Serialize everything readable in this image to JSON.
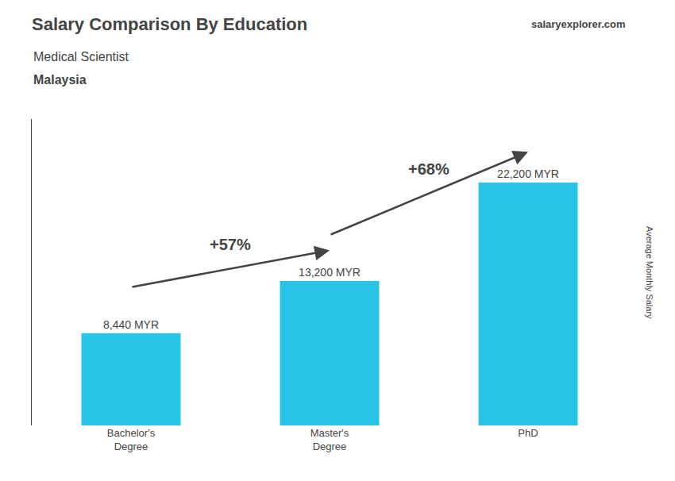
{
  "chart_data": {
    "type": "bar",
    "title": "Salary Comparison By Education",
    "subtitle": "Medical Scientist",
    "annotations": [
      "Malaysia",
      "salaryexplorer.com",
      "+57%",
      "+68%"
    ],
    "ylabel": "Average Monthly Salary",
    "categories": [
      "Bachelor's\nDegree",
      "Master's\nDegree",
      "PhD"
    ],
    "values": [
      8440,
      13200,
      22200
    ],
    "value_labels": [
      "8,440 MYR",
      "13,200 MYR",
      "22,200 MYR"
    ],
    "data_labels": true,
    "color": "#29C5E6",
    "ylim": [
      0,
      28000
    ],
    "tick_labels": "x",
    "grid": false
  }
}
